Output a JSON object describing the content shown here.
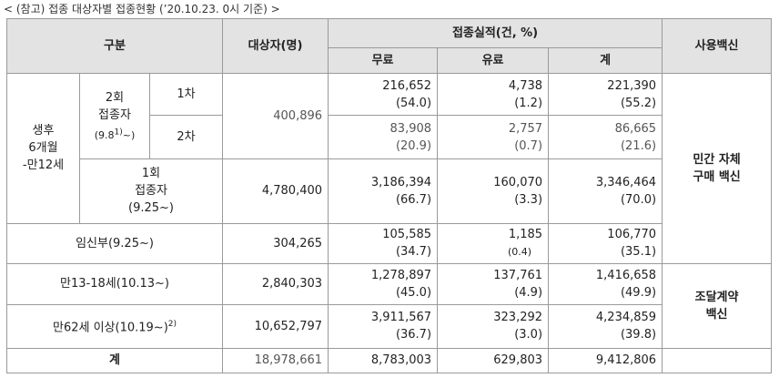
{
  "caption": "< (참고) 접종 대상자별 접종현황 (’20.10.23. 0시 기준) >",
  "header": {
    "category": "구분",
    "target": "대상자(명)",
    "performance": "접종실적(건, %)",
    "free": "무료",
    "paid": "유료",
    "total": "계",
    "vaccine": "사용백신"
  },
  "groups": {
    "age_6m_12y": "생후\n6개월\n-만12세",
    "twice": "2회\n접종자",
    "twice_since": "(9.8",
    "twice_note": "1)",
    "twice_since_tail": "~)",
    "first_dose": "1차",
    "second_dose": "2차",
    "once": "1회\n접종자",
    "once_since": "(9.25~)",
    "pregnant": "임신부(9.25~)",
    "age_13_18": "만13-18세(10.13~)",
    "age_62_plus": "만62세 이상(10.19~)",
    "age_62_note": "2)",
    "grand_total": "계"
  },
  "rows": {
    "twice_first": {
      "free": "216,652",
      "free_pct": "(54.0)",
      "paid": "4,738",
      "paid_pct": "(1.2)",
      "total": "221,390",
      "total_pct": "(55.2)"
    },
    "twice_target": "400,896",
    "twice_second": {
      "free": "83,908",
      "free_pct": "(20.9)",
      "paid": "2,757",
      "paid_pct": "(0.7)",
      "total": "86,665",
      "total_pct": "(21.6)"
    },
    "once": {
      "target": "4,780,400",
      "free": "3,186,394",
      "free_pct": "(66.7)",
      "paid": "160,070",
      "paid_pct": "(3.3)",
      "total": "3,346,464",
      "total_pct": "(70.0)"
    },
    "pregnant": {
      "target": "304,265",
      "free": "105,585",
      "free_pct": "(34.7)",
      "paid": "1,185",
      "paid_pct": "(0.4)",
      "total": "106,770",
      "total_pct": "(35.1)"
    },
    "age_13_18": {
      "target": "2,840,303",
      "free": "1,278,897",
      "free_pct": "(45.0)",
      "paid": "137,761",
      "paid_pct": "(4.9)",
      "total": "1,416,658",
      "total_pct": "(49.9)"
    },
    "age_62_plus": {
      "target": "10,652,797",
      "free": "3,911,567",
      "free_pct": "(36.7)",
      "paid": "323,292",
      "paid_pct": "(3.0)",
      "total": "4,234,859",
      "total_pct": "(39.8)"
    },
    "grand_total": {
      "target": "18,978,661",
      "free": "8,783,003",
      "paid": "629,803",
      "total": "9,412,806"
    }
  },
  "vaccine_private": "민간 자체\n구매 백신",
  "vaccine_procured": "조달계약\n백신"
}
